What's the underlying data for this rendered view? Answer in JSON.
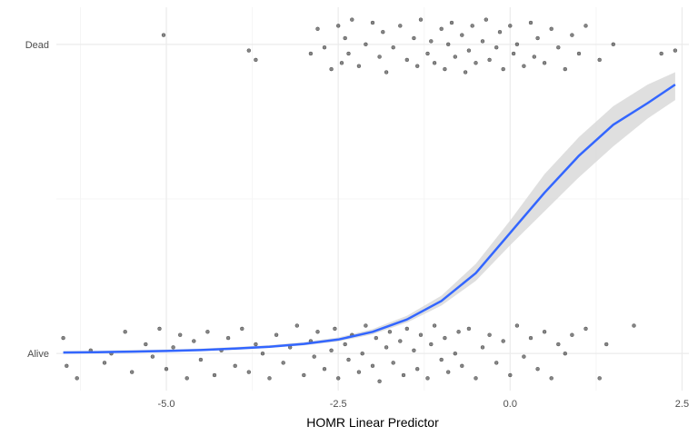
{
  "chart_data": {
    "type": "scatter",
    "xlabel": "HOMR Linear Predictor",
    "ylabel": "",
    "x_ticks": [
      -5.0,
      -2.5,
      0.0,
      2.5
    ],
    "x_tick_labels": [
      "-5.0",
      "-2.5",
      "0.0",
      "2.5"
    ],
    "xlim": [
      -6.6,
      2.6
    ],
    "y_categories": [
      "Alive",
      "Dead"
    ],
    "ylim": [
      -0.12,
      1.12
    ],
    "grid": true,
    "legend": "none",
    "colors": {
      "points": "#333333",
      "curve": "#3366ff",
      "band": "#d9d9d9",
      "grid_major": "#ebebeb",
      "grid_minor": "#f5f5f5"
    },
    "series": [
      {
        "type": "jitter",
        "category": "Dead",
        "note_jitter": 0.09,
        "x": [
          -5.04,
          -3.8,
          -3.7,
          -2.9,
          -2.8,
          -2.7,
          -2.6,
          -2.5,
          -2.45,
          -2.4,
          -2.35,
          -2.3,
          -2.2,
          -2.1,
          -2.0,
          -1.9,
          -1.85,
          -1.8,
          -1.7,
          -1.6,
          -1.5,
          -1.4,
          -1.35,
          -1.3,
          -1.2,
          -1.15,
          -1.1,
          -1.0,
          -0.95,
          -0.9,
          -0.85,
          -0.8,
          -0.7,
          -0.65,
          -0.6,
          -0.55,
          -0.5,
          -0.4,
          -0.35,
          -0.3,
          -0.2,
          -0.15,
          -0.1,
          0.0,
          0.05,
          0.1,
          0.2,
          0.3,
          0.35,
          0.4,
          0.5,
          0.6,
          0.7,
          0.8,
          0.9,
          1.0,
          1.1,
          1.3,
          1.5,
          2.2,
          2.4
        ],
        "y": [
          1.03,
          0.98,
          0.95,
          0.97,
          1.05,
          0.99,
          0.92,
          1.06,
          0.94,
          1.02,
          0.97,
          1.08,
          0.93,
          1.0,
          1.07,
          0.96,
          1.04,
          0.91,
          0.99,
          1.06,
          0.95,
          1.02,
          0.93,
          1.08,
          0.97,
          1.01,
          0.94,
          1.05,
          0.92,
          1.0,
          1.07,
          0.96,
          1.03,
          0.91,
          0.98,
          1.06,
          0.94,
          1.01,
          1.08,
          0.95,
          0.99,
          1.04,
          0.92,
          1.06,
          0.97,
          1.0,
          0.93,
          1.07,
          0.96,
          1.02,
          0.94,
          1.05,
          0.99,
          0.92,
          1.03,
          0.97,
          1.06,
          0.95,
          1.0,
          0.97,
          0.98
        ]
      },
      {
        "type": "jitter",
        "category": "Alive",
        "x": [
          -6.5,
          -6.45,
          -6.3,
          -6.1,
          -5.9,
          -5.8,
          -5.6,
          -5.5,
          -5.3,
          -5.2,
          -5.1,
          -5.0,
          -4.9,
          -4.8,
          -4.7,
          -4.6,
          -4.5,
          -4.4,
          -4.3,
          -4.2,
          -4.1,
          -4.0,
          -3.9,
          -3.8,
          -3.7,
          -3.6,
          -3.5,
          -3.4,
          -3.3,
          -3.2,
          -3.1,
          -3.0,
          -2.9,
          -2.85,
          -2.8,
          -2.7,
          -2.6,
          -2.55,
          -2.5,
          -2.4,
          -2.35,
          -2.3,
          -2.2,
          -2.15,
          -2.1,
          -2.0,
          -1.95,
          -1.9,
          -1.8,
          -1.75,
          -1.7,
          -1.6,
          -1.55,
          -1.5,
          -1.4,
          -1.35,
          -1.3,
          -1.2,
          -1.15,
          -1.1,
          -1.0,
          -0.95,
          -0.9,
          -0.8,
          -0.75,
          -0.7,
          -0.6,
          -0.5,
          -0.4,
          -0.3,
          -0.2,
          -0.1,
          0.0,
          0.1,
          0.2,
          0.3,
          0.4,
          0.5,
          0.6,
          0.7,
          0.8,
          0.9,
          1.1,
          1.3,
          1.4,
          1.8
        ],
        "y": [
          0.05,
          -0.04,
          -0.08,
          0.01,
          -0.03,
          0.0,
          0.07,
          -0.06,
          0.03,
          -0.01,
          0.08,
          -0.05,
          0.02,
          0.06,
          -0.08,
          0.04,
          -0.02,
          0.07,
          -0.07,
          0.01,
          0.05,
          -0.04,
          0.08,
          -0.06,
          0.03,
          0.0,
          -0.08,
          0.06,
          -0.03,
          0.02,
          0.09,
          -0.07,
          0.04,
          -0.01,
          0.07,
          -0.05,
          0.01,
          0.08,
          -0.08,
          0.03,
          -0.02,
          0.06,
          -0.06,
          0.0,
          0.09,
          -0.04,
          0.05,
          -0.09,
          0.02,
          0.07,
          -0.03,
          0.04,
          -0.07,
          0.08,
          0.01,
          -0.05,
          0.06,
          -0.08,
          0.03,
          0.09,
          -0.02,
          0.05,
          -0.06,
          0.0,
          0.07,
          -0.04,
          0.08,
          -0.08,
          0.02,
          0.06,
          -0.03,
          0.04,
          -0.07,
          0.09,
          -0.01,
          0.05,
          -0.05,
          0.07,
          -0.08,
          0.03,
          0.0,
          0.06,
          0.08,
          -0.08,
          0.03,
          0.09
        ]
      },
      {
        "type": "logistic_curve",
        "name": "",
        "x": [
          -6.5,
          -6.0,
          -5.5,
          -5.0,
          -4.5,
          -4.0,
          -3.5,
          -3.0,
          -2.5,
          -2.0,
          -1.5,
          -1.0,
          -0.5,
          0.0,
          0.5,
          1.0,
          1.5,
          2.0,
          2.4
        ],
        "y": [
          0.003,
          0.004,
          0.006,
          0.008,
          0.011,
          0.016,
          0.022,
          0.031,
          0.045,
          0.07,
          0.11,
          0.17,
          0.26,
          0.39,
          0.52,
          0.64,
          0.74,
          0.81,
          0.87
        ],
        "ci_lower": [
          0.001,
          0.002,
          0.003,
          0.005,
          0.008,
          0.012,
          0.018,
          0.026,
          0.039,
          0.062,
          0.1,
          0.155,
          0.235,
          0.35,
          0.46,
          0.57,
          0.67,
          0.76,
          0.82
        ],
        "ci_upper": [
          0.008,
          0.009,
          0.011,
          0.013,
          0.016,
          0.021,
          0.027,
          0.037,
          0.052,
          0.079,
          0.122,
          0.187,
          0.29,
          0.43,
          0.58,
          0.7,
          0.8,
          0.87,
          0.91
        ]
      }
    ]
  }
}
